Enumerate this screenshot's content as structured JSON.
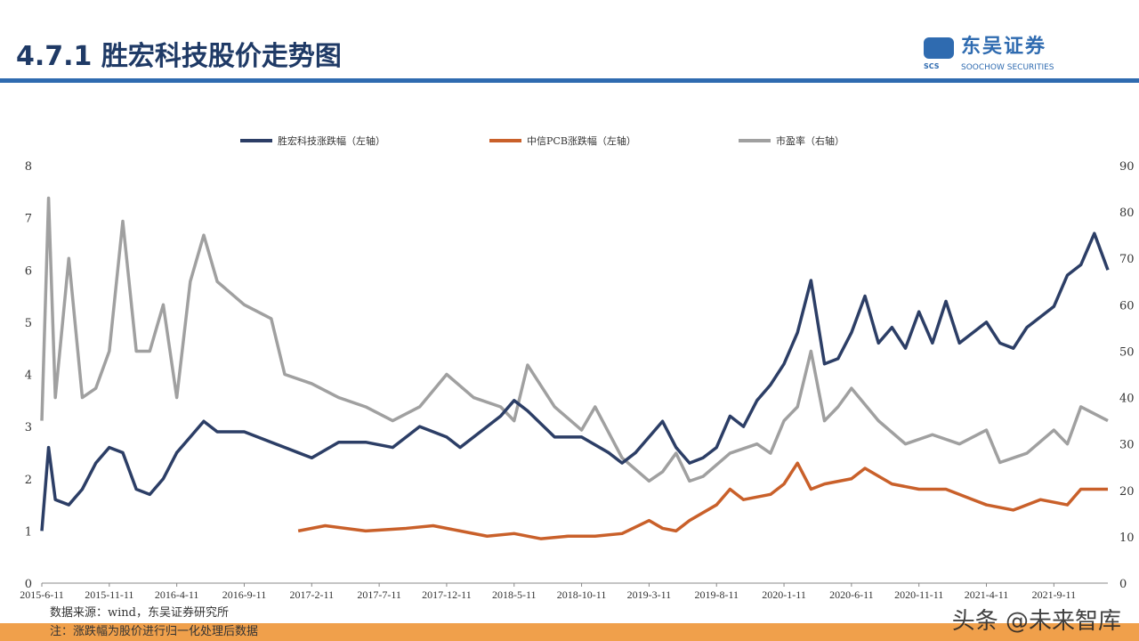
{
  "header": {
    "title": "4.7.1 胜宏科技股价走势图",
    "logo_cn": "东吴证券",
    "logo_en": "SOOCHOW SECURITIES",
    "logo_abbr": "SCS"
  },
  "footer": {
    "source": "数据来源：wind，东吴证券研究所",
    "note": "注：涨跌幅为股价进行归一化处理后数据",
    "watermark": "头条 @未来智库"
  },
  "chart_data": {
    "type": "line",
    "x_unit": "months since 2015-06",
    "xlim": [
      0,
      79
    ],
    "xticks": [
      0,
      5,
      10,
      15,
      20,
      25,
      30,
      35,
      40,
      45,
      50,
      55,
      60,
      65,
      70,
      75
    ],
    "xtick_labels": [
      "2015-6-11",
      "2015-11-11",
      "2016-4-11",
      "2016-9-11",
      "2017-2-11",
      "2017-7-11",
      "2017-12-11",
      "2018-5-11",
      "2018-10-11",
      "2019-3-11",
      "2019-8-11",
      "2020-1-11",
      "2020-6-11",
      "2020-11-11",
      "2021-4-11",
      "2021-9-11"
    ],
    "ylim_left": [
      0,
      8
    ],
    "yticks_left": [
      0,
      1,
      2,
      3,
      4,
      5,
      6,
      7,
      8
    ],
    "ylim_right": [
      0,
      90
    ],
    "yticks_right": [
      0,
      10,
      20,
      30,
      40,
      50,
      60,
      70,
      80,
      90
    ],
    "legend_position": "top",
    "series": [
      {
        "name": "胜宏科技涨跌幅（左轴）",
        "axis": "left",
        "color": "#2c3e66",
        "x": [
          0,
          0.5,
          1,
          2,
          3,
          4,
          5,
          6,
          7,
          8,
          9,
          10,
          11,
          12,
          13,
          15,
          17,
          19,
          20,
          22,
          24,
          26,
          28,
          30,
          31,
          33,
          34,
          35,
          36,
          38,
          40,
          42,
          43,
          44,
          46,
          47,
          48,
          49,
          50,
          51,
          52,
          53,
          54,
          55,
          56,
          57,
          58,
          59,
          60,
          61,
          62,
          63,
          64,
          65,
          66,
          67,
          68,
          69,
          70,
          71,
          72,
          73,
          74,
          75,
          76,
          77,
          78,
          79
        ],
        "y": [
          1.0,
          2.6,
          1.6,
          1.5,
          1.8,
          2.3,
          2.6,
          2.5,
          1.8,
          1.7,
          2.0,
          2.5,
          2.8,
          3.1,
          2.9,
          2.9,
          2.7,
          2.5,
          2.4,
          2.7,
          2.7,
          2.6,
          3.0,
          2.8,
          2.6,
          3.0,
          3.2,
          3.5,
          3.3,
          2.8,
          2.8,
          2.5,
          2.3,
          2.5,
          3.1,
          2.6,
          2.3,
          2.4,
          2.6,
          3.2,
          3.0,
          3.5,
          3.8,
          4.2,
          4.8,
          5.8,
          4.2,
          4.3,
          4.8,
          5.5,
          4.6,
          4.9,
          4.5,
          5.2,
          4.6,
          5.4,
          4.6,
          4.8,
          5.0,
          4.6,
          4.5,
          4.9,
          5.1,
          5.3,
          5.9,
          6.1,
          6.7,
          6.0
        ]
      },
      {
        "name": "中信PCB涨跌幅（左轴）",
        "axis": "left",
        "color": "#c9602a",
        "x": [
          19,
          21,
          24,
          27,
          29,
          31,
          33,
          35,
          37,
          39,
          41,
          43,
          45,
          46,
          47,
          48,
          50,
          51,
          52,
          54,
          55,
          56,
          57,
          58,
          60,
          61,
          63,
          65,
          67,
          69,
          70,
          72,
          74,
          76,
          77,
          79
        ],
        "y": [
          1.0,
          1.1,
          1.0,
          1.05,
          1.1,
          1.0,
          0.9,
          0.95,
          0.85,
          0.9,
          0.9,
          0.95,
          1.2,
          1.05,
          1.0,
          1.2,
          1.5,
          1.8,
          1.6,
          1.7,
          1.9,
          2.3,
          1.8,
          1.9,
          2.0,
          2.2,
          1.9,
          1.8,
          1.8,
          1.6,
          1.5,
          1.4,
          1.6,
          1.5,
          1.8,
          1.8
        ]
      },
      {
        "name": "市盈率（右轴）",
        "axis": "right",
        "color": "#a0a0a0",
        "x": [
          0,
          0.5,
          1,
          2,
          3,
          4,
          5,
          6,
          7,
          8,
          9,
          10,
          11,
          12,
          13,
          15,
          17,
          18,
          20,
          22,
          24,
          26,
          28,
          30,
          32,
          34,
          35,
          36,
          38,
          40,
          41,
          43,
          45,
          46,
          47,
          48,
          49,
          51,
          53,
          54,
          55,
          56,
          57,
          58,
          59,
          60,
          62,
          64,
          66,
          68,
          70,
          71,
          73,
          75,
          76,
          77,
          79
        ],
        "y": [
          35,
          83,
          40,
          70,
          40,
          42,
          50,
          78,
          50,
          50,
          60,
          40,
          65,
          75,
          65,
          60,
          57,
          45,
          43,
          40,
          38,
          35,
          38,
          45,
          40,
          38,
          35,
          47,
          38,
          33,
          38,
          27,
          22,
          24,
          28,
          22,
          23,
          28,
          30,
          28,
          35,
          38,
          50,
          35,
          38,
          42,
          35,
          30,
          32,
          30,
          33,
          26,
          28,
          33,
          30,
          38,
          35
        ]
      }
    ]
  }
}
